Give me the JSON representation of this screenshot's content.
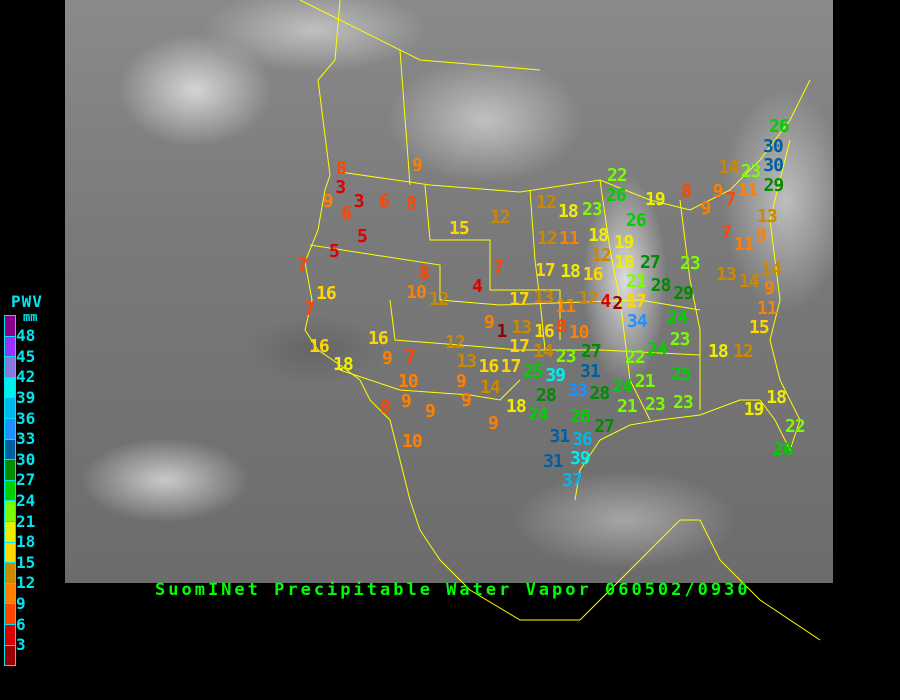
{
  "title": "SuomINet Precipitable Water Vapor 060502/0930",
  "legend": {
    "title": "PWV",
    "unit": "mm",
    "ticks": [
      "48",
      "45",
      "42",
      "39",
      "36",
      "33",
      "30",
      "27",
      "24",
      "21",
      "18",
      "15",
      "12",
      "9",
      "6",
      "3"
    ],
    "colors": [
      "#8b008b",
      "#9932ff",
      "#8877dd",
      "#00eeee",
      "#00b8ee",
      "#1e90ff",
      "#005f9f",
      "#008b00",
      "#00d000",
      "#7cfc00",
      "#eeee00",
      "#ffd700",
      "#cc8800",
      "#ff8000",
      "#ff4500",
      "#dd0000",
      "#990000"
    ]
  },
  "stations": [
    "8",
    "3",
    "9",
    "3",
    "6",
    "6",
    "8",
    "9",
    "5",
    "5",
    "7",
    "15",
    "12",
    "7",
    "8",
    "4",
    "10",
    "12",
    "16",
    "7",
    "16",
    "18",
    "16",
    "9",
    "7",
    "10",
    "9",
    "13",
    "12",
    "16",
    "14",
    "9",
    "9",
    "8",
    "9",
    "10",
    "9",
    "9",
    "1",
    "12",
    "18",
    "23",
    "22",
    "26",
    "19",
    "26",
    "12",
    "11",
    "18",
    "19",
    "12",
    "18",
    "17",
    "18",
    "16",
    "17",
    "13",
    "12",
    "11",
    "4",
    "2",
    "17",
    "27",
    "21",
    "28",
    "29",
    "23",
    "34",
    "24",
    "8",
    "13",
    "16",
    "10",
    "17",
    "17",
    "14",
    "23",
    "27",
    "31",
    "25",
    "39",
    "33",
    "28",
    "28",
    "18",
    "24",
    "26",
    "27",
    "31",
    "36",
    "39",
    "31",
    "37",
    "22",
    "24",
    "23",
    "21",
    "24",
    "25",
    "21",
    "23",
    "23",
    "18",
    "12",
    "15",
    "11",
    "9",
    "14",
    "13",
    "14",
    "11",
    "9",
    "13",
    "7",
    "9",
    "8",
    "9",
    "7",
    "14",
    "11",
    "23",
    "29",
    "30",
    "30",
    "26",
    "18",
    "19",
    "22",
    "26"
  ]
}
